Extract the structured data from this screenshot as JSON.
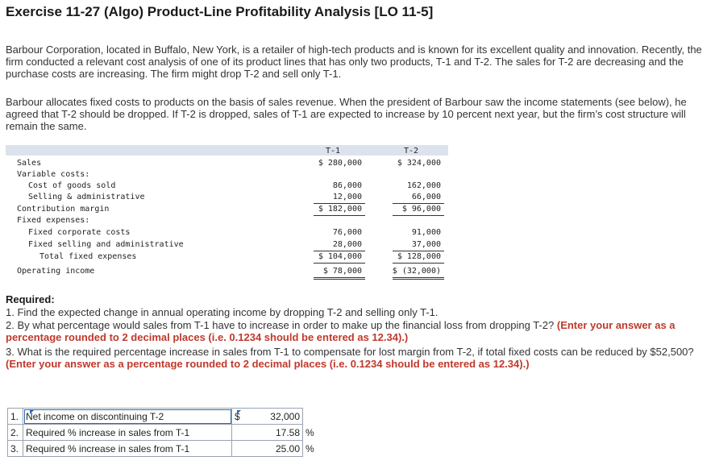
{
  "header": {
    "title": "Exercise 11-27 (Algo) Product-Line Profitability Analysis [LO 11-5]"
  },
  "paragraphs": {
    "p1": "Barbour Corporation, located in Buffalo, New York, is a retailer of high-tech products and is known for its excellent quality and innovation. Recently, the firm conducted a relevant cost analysis of one of its product lines that has only two products, T-1 and T-2. The sales for T-2 are decreasing and the purchase costs are increasing. The firm might drop T-2 and sell only T-1.",
    "p2": "Barbour allocates fixed costs to products on the basis of sales revenue. When the president of Barbour saw the income statements (see below), he agreed that T-2 should be dropped. If T-2 is dropped, sales of T-1 are expected to increase by 10 percent next year, but the firm’s cost structure will remain the same."
  },
  "statement": {
    "col_t1": "T-1",
    "col_t2": "T-2",
    "rows": {
      "sales": {
        "label": "Sales",
        "t1": "$ 280,000",
        "t2": "$ 324,000"
      },
      "variable_costs": {
        "label": "Variable costs:"
      },
      "cogs": {
        "label": "Cost of goods sold",
        "t1": "86,000",
        "t2": "162,000"
      },
      "sga": {
        "label": "Selling & administrative",
        "t1": "12,000",
        "t2": "66,000"
      },
      "cm": {
        "label": "Contribution margin",
        "t1": "$ 182,000",
        "t2": "$ 96,000"
      },
      "fixed_expenses": {
        "label": "Fixed expenses:"
      },
      "fixed_corp": {
        "label": "Fixed corporate costs",
        "t1": "76,000",
        "t2": "91,000"
      },
      "fixed_sga": {
        "label": "Fixed selling and administrative",
        "t1": "28,000",
        "t2": "37,000"
      },
      "total_fixed": {
        "label": "Total fixed expenses",
        "t1": "$ 104,000",
        "t2": "$ 128,000"
      },
      "op_income": {
        "label": "Operating income",
        "t1": "$ 78,000",
        "t2": "$ (32,000)"
      }
    }
  },
  "required": {
    "heading": "Required:",
    "q1": "1. Find the expected change in annual operating income by dropping T-2 and selling only T-1.",
    "q2_text": "2. By what percentage would sales from T-1 have to increase in order to make up the financial loss from dropping T-2?",
    "q2_note": "(Enter your answer as a percentage rounded to 2 decimal places (i.e. 0.1234 should be entered as 12.34).)",
    "q3_text": "3. What is the required percentage increase in sales from T-1 to compensate for lost margin from T-2, if total fixed costs can be reduced by $52,500?",
    "q3_note": "(Enter your answer as a percentage rounded to 2 decimal places (i.e. 0.1234 should be entered as 12.34).)"
  },
  "answers": [
    {
      "num": "1.",
      "label": "Net income on discontinuing T-2",
      "symbol": "$",
      "value": "32,000",
      "unit": ""
    },
    {
      "num": "2.",
      "label": "Required % increase in sales from T-1",
      "symbol": "",
      "value": "17.58",
      "unit": "%"
    },
    {
      "num": "3.",
      "label": "Required % increase in sales from T-1",
      "symbol": "",
      "value": "25.00",
      "unit": "%"
    }
  ]
}
